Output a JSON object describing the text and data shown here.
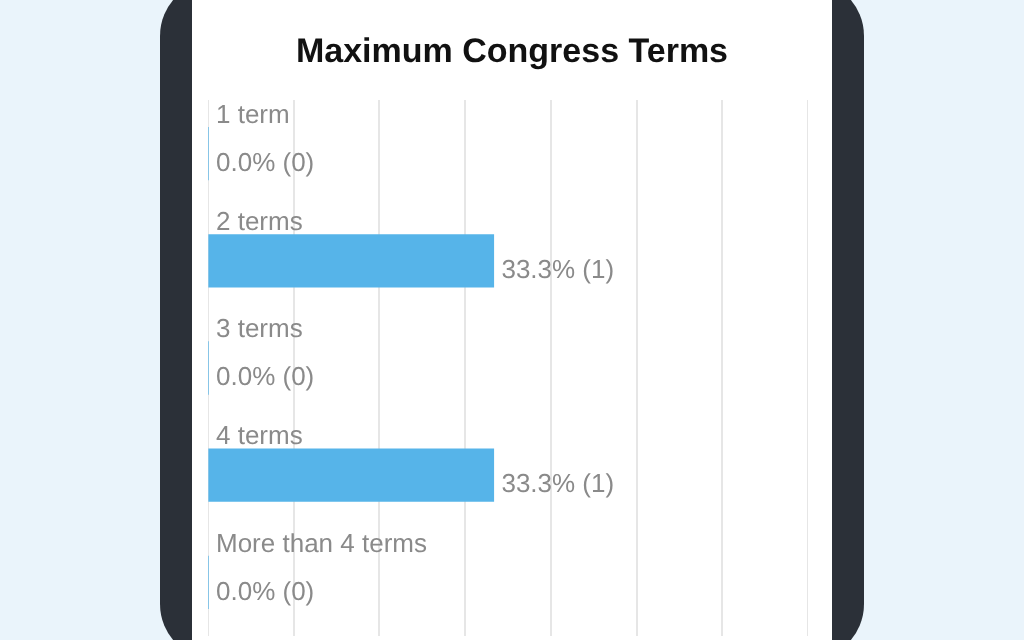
{
  "chart_data": {
    "type": "bar",
    "title": "Maximum Congress Terms",
    "orientation": "horizontal",
    "tick_labels": false,
    "categories": [
      "1 term",
      "2 terms",
      "3 terms",
      "4 terms",
      "More than 4 terms"
    ],
    "values": [
      0,
      33.3,
      0,
      33.3,
      0
    ],
    "color": "#56b4e9",
    "value_labels": [
      "0.0% (0)",
      "33.3% (1)",
      "0.0% (0)",
      "33.3% (1)",
      "0.0% (0)"
    ],
    "grid": "x",
    "legend": false
  }
}
